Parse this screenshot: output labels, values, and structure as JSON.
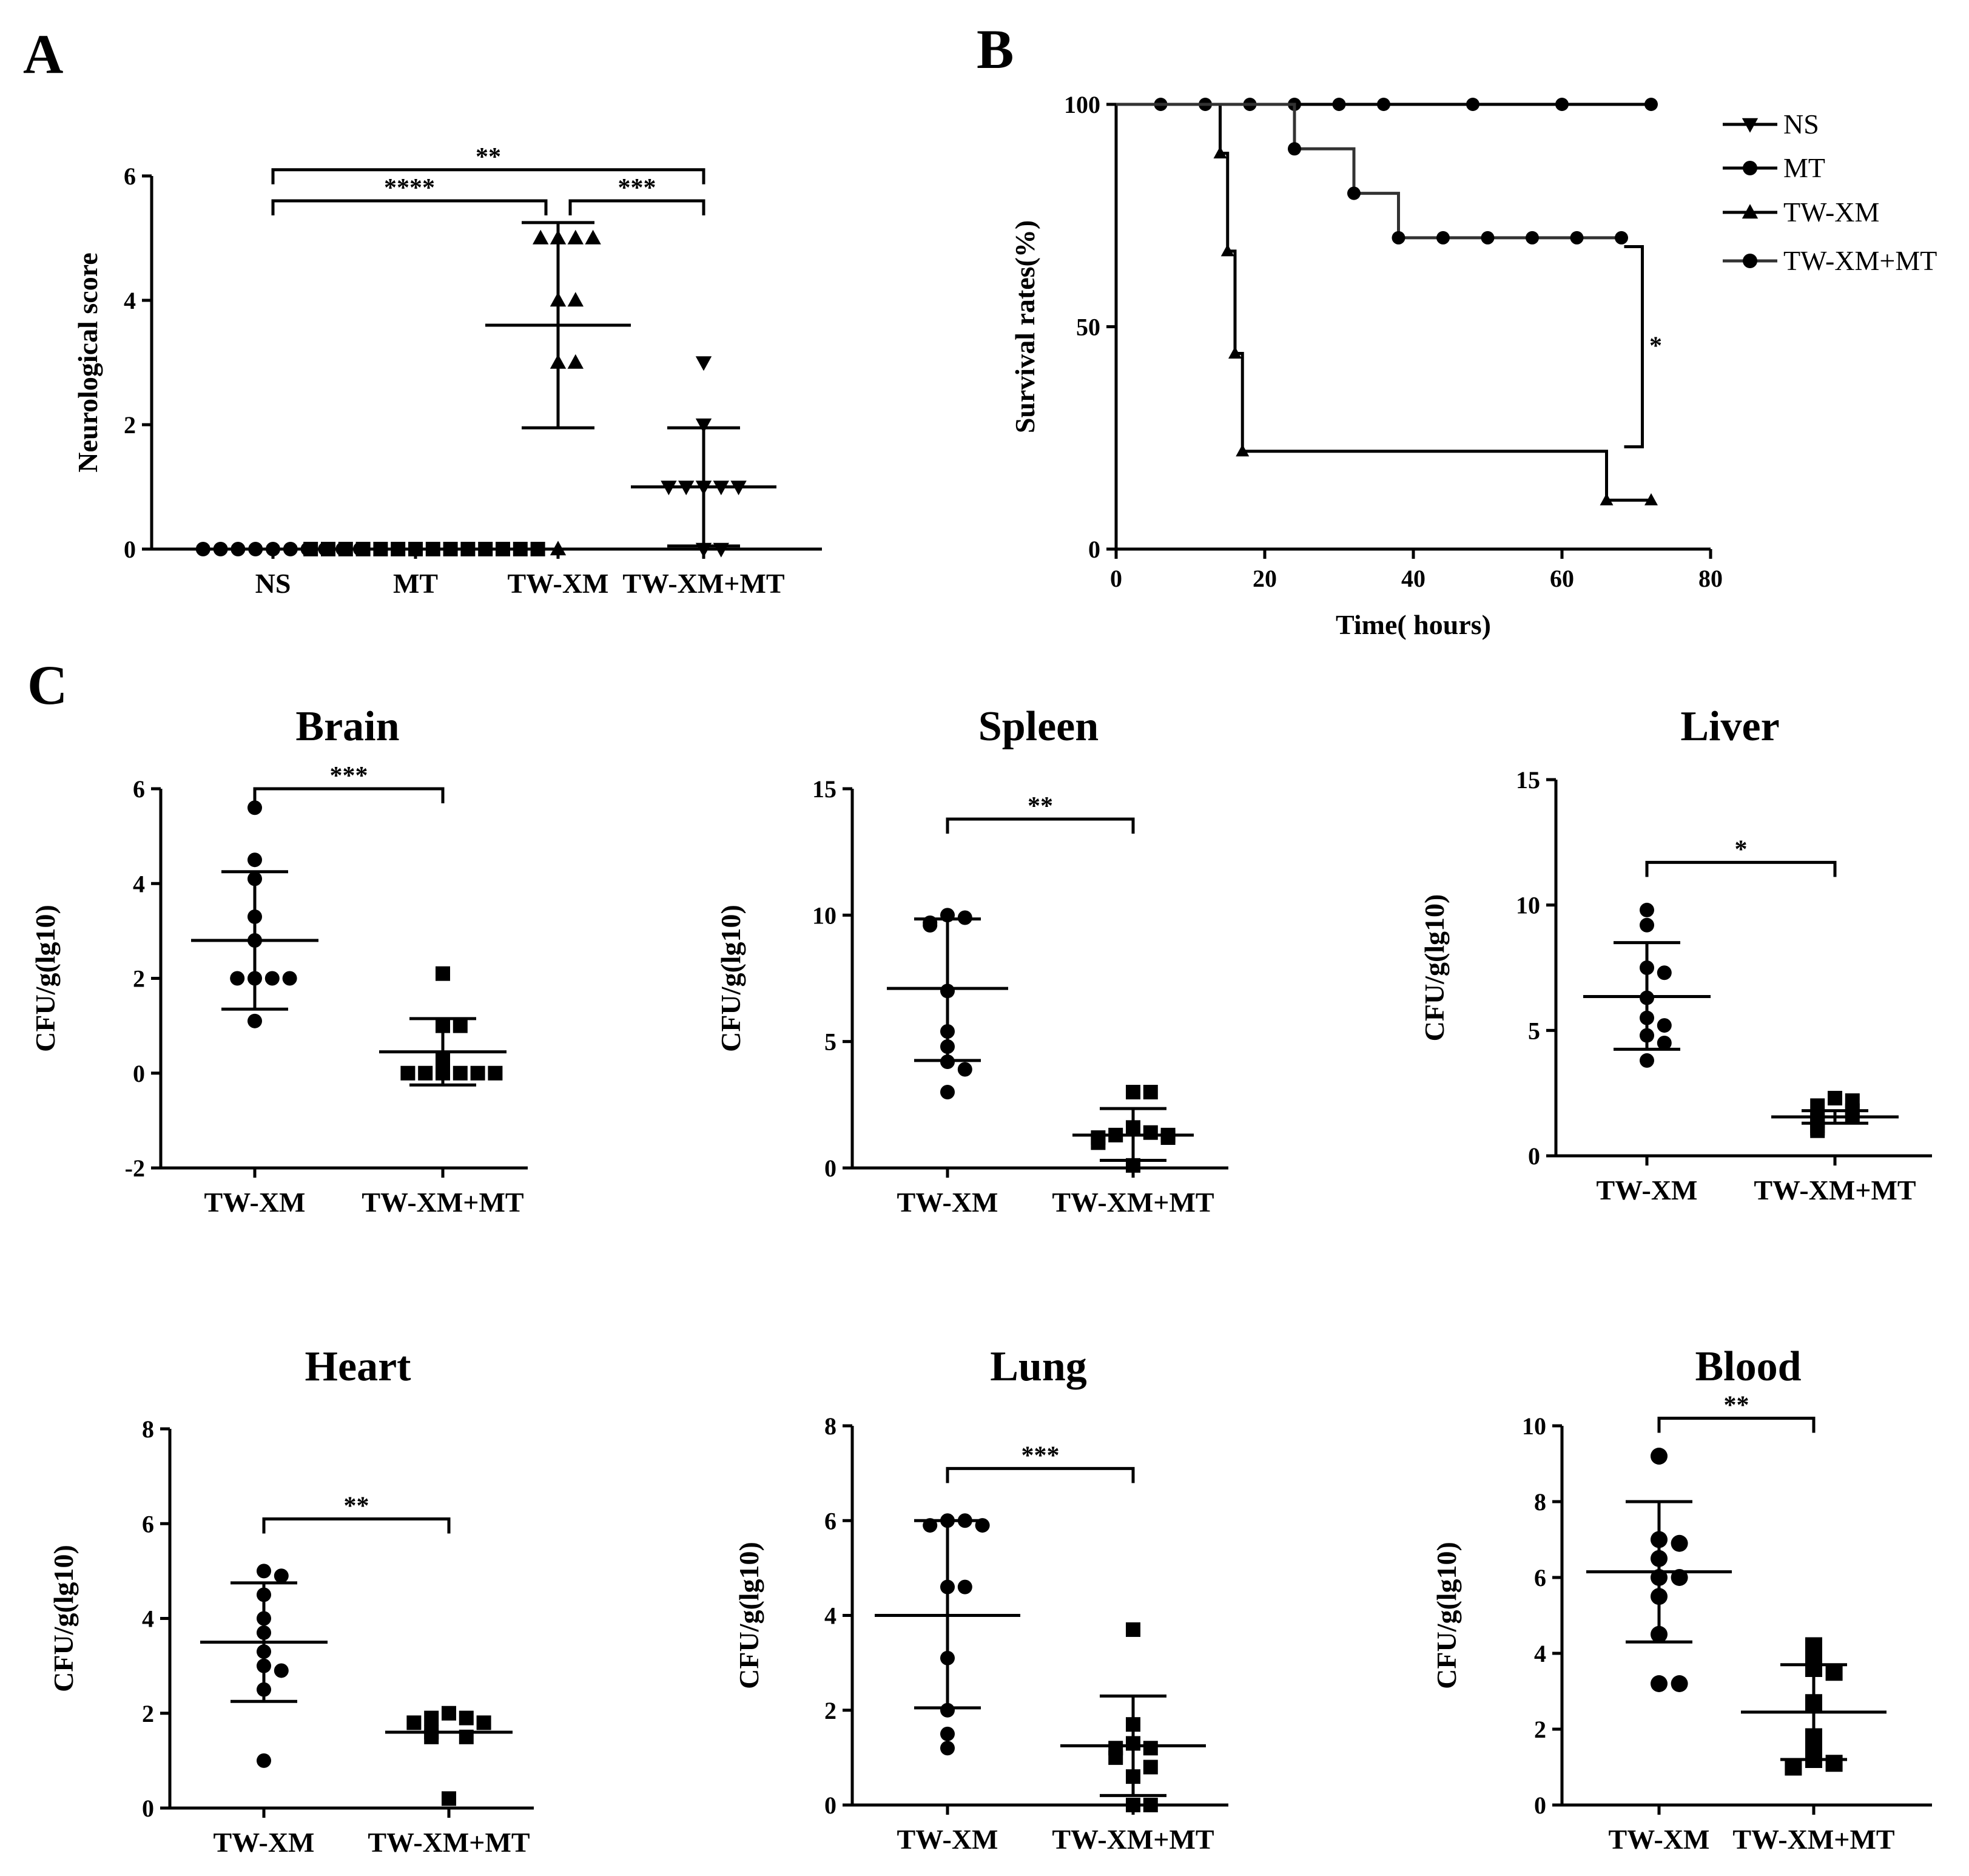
{
  "panel_letters": [
    "A",
    "B",
    "C"
  ],
  "chart_data": [
    {
      "id": "A",
      "type": "scatter",
      "title": "",
      "ylabel": "Neurological score",
      "xlabel": "",
      "categories": [
        "NS",
        "MT",
        "TW-XM",
        "TW-XM+MT"
      ],
      "ylim": [
        0,
        6
      ],
      "yticks": [
        0,
        2,
        4,
        6
      ],
      "groups": [
        {
          "name": "NS",
          "marker": "circle",
          "values": [
            0,
            0,
            0,
            0,
            0,
            0,
            0,
            0,
            0,
            0
          ],
          "mean": 0,
          "sd_low": 0,
          "sd_high": 0
        },
        {
          "name": "MT",
          "marker": "square",
          "values": [
            0,
            0,
            0,
            0,
            0,
            0,
            0,
            0,
            0,
            0,
            0,
            0,
            0,
            0
          ],
          "mean": 0,
          "sd_low": 0,
          "sd_high": 0
        },
        {
          "name": "TW-XM",
          "marker": "triangle-up",
          "values": [
            5,
            5,
            5,
            5,
            4,
            4,
            3,
            3,
            0
          ],
          "mean": 3.6,
          "sd_low": 1.95,
          "sd_high": 5.25
        },
        {
          "name": "TW-XM+MT",
          "marker": "triangle-down",
          "values": [
            3,
            2,
            1,
            1,
            1,
            1,
            1,
            0,
            0
          ],
          "mean": 1.0,
          "sd_low": 0.05,
          "sd_high": 1.95
        }
      ],
      "significance": [
        {
          "from": 0,
          "to": 3,
          "label": "**",
          "level": 6.1
        },
        {
          "from": 0,
          "to": 2,
          "label": "****",
          "level": 5.6
        },
        {
          "from": 2,
          "to": 3,
          "label": "***",
          "level": 5.6
        }
      ]
    },
    {
      "id": "B",
      "type": "line",
      "title": "",
      "xlabel": "Time( hours)",
      "ylabel": "Survival rates(%)",
      "xlim": [
        0,
        80
      ],
      "ylim": [
        0,
        100
      ],
      "xticks": [
        0,
        20,
        40,
        60,
        80
      ],
      "yticks": [
        0,
        50,
        100
      ],
      "legend_position": "right",
      "series": [
        {
          "name": "NS",
          "marker": "triangle-down",
          "steps": [
            [
              0,
              100
            ],
            [
              72,
              100
            ]
          ],
          "censored": [
            [
              6,
              100
            ],
            [
              12,
              100
            ],
            [
              18,
              100
            ],
            [
              24,
              100
            ],
            [
              30,
              100
            ],
            [
              36,
              100
            ],
            [
              48,
              100
            ],
            [
              60,
              100
            ],
            [
              72,
              100
            ]
          ]
        },
        {
          "name": "MT",
          "marker": "circle",
          "steps": [
            [
              0,
              100
            ],
            [
              72,
              100
            ]
          ],
          "censored": []
        },
        {
          "name": "TW-XM",
          "marker": "triangle-up",
          "steps": [
            [
              0,
              100
            ],
            [
              14,
              100
            ],
            [
              14,
              89
            ],
            [
              15,
              89
            ],
            [
              15,
              67
            ],
            [
              16,
              67
            ],
            [
              16,
              44
            ],
            [
              17,
              44
            ],
            [
              17,
              22
            ],
            [
              66,
              22
            ],
            [
              66,
              11
            ],
            [
              72,
              11
            ]
          ],
          "censored": [
            [
              14,
              89
            ],
            [
              15,
              67
            ],
            [
              16,
              44
            ],
            [
              17,
              22
            ],
            [
              66,
              11
            ],
            [
              72,
              11
            ]
          ]
        },
        {
          "name": "TW-XM+MT",
          "marker": "circle",
          "steps": [
            [
              0,
              100
            ],
            [
              24,
              100
            ],
            [
              24,
              90
            ],
            [
              32,
              90
            ],
            [
              32,
              80
            ],
            [
              38,
              80
            ],
            [
              38,
              70
            ],
            [
              68,
              70
            ]
          ],
          "censored": [
            [
              24,
              90
            ],
            [
              32,
              80
            ],
            [
              38,
              70
            ],
            [
              44,
              70
            ],
            [
              50,
              70
            ],
            [
              56,
              70
            ],
            [
              62,
              70
            ],
            [
              68,
              70
            ]
          ]
        }
      ],
      "significance": [
        {
          "x": 70,
          "y_top": 68,
          "y_bottom": 23,
          "label": "*"
        }
      ]
    },
    {
      "id": "C-Brain",
      "type": "scatter",
      "title": "Brain",
      "ylabel": "CFU/g(lg10)",
      "categories": [
        "TW-XM",
        "TW-XM+MT"
      ],
      "ylim": [
        -2,
        6
      ],
      "yticks": [
        -2,
        0,
        2,
        4,
        6
      ],
      "groups": [
        {
          "name": "TW-XM",
          "marker": "circle",
          "values": [
            5.6,
            4.5,
            4.1,
            3.3,
            2.8,
            2.0,
            2.0,
            2.0,
            2.0,
            1.1
          ],
          "mean": 2.8,
          "sd_low": 1.35,
          "sd_high": 4.25
        },
        {
          "name": "TW-XM+MT",
          "marker": "square",
          "values": [
            2.1,
            1.0,
            1.0,
            0.3,
            0.0,
            0.0,
            0.0,
            0.0,
            0.0,
            0.0
          ],
          "mean": 0.45,
          "sd_low": -0.25,
          "sd_high": 1.15
        }
      ],
      "significance": [
        {
          "from": 0,
          "to": 1,
          "label": "***",
          "level": 6.0
        }
      ]
    },
    {
      "id": "C-Spleen",
      "type": "scatter",
      "title": "Spleen",
      "ylabel": "CFU/g(lg10)",
      "categories": [
        "TW-XM",
        "TW-XM+MT"
      ],
      "ylim": [
        0,
        15
      ],
      "yticks": [
        0,
        5,
        10,
        15
      ],
      "groups": [
        {
          "name": "TW-XM",
          "marker": "circle",
          "values": [
            10.0,
            9.9,
            9.7,
            9.6,
            7.0,
            5.4,
            4.8,
            4.2,
            3.9,
            3.0
          ],
          "mean": 7.1,
          "sd_low": 4.25,
          "sd_high": 9.85
        },
        {
          "name": "TW-XM+MT",
          "marker": "square",
          "values": [
            3.0,
            3.0,
            1.6,
            1.4,
            1.3,
            1.3,
            1.2,
            1.2,
            1.0,
            0.1
          ],
          "mean": 1.3,
          "sd_low": 0.3,
          "sd_high": 2.35
        },
        {
          "name": "",
          "marker": "",
          "values": []
        }
      ],
      "significance": [
        {
          "from": 0,
          "to": 1,
          "label": "**",
          "level": 13.8
        }
      ]
    },
    {
      "id": "C-Liver",
      "type": "scatter",
      "title": "Liver",
      "ylabel": "CFU/g(lg10)",
      "categories": [
        "TW-XM",
        "TW-XM+MT"
      ],
      "ylim": [
        0,
        15
      ],
      "yticks": [
        0,
        5,
        10,
        15
      ],
      "groups": [
        {
          "name": "TW-XM",
          "marker": "circle",
          "values": [
            9.8,
            9.2,
            7.5,
            7.3,
            6.3,
            5.5,
            5.2,
            4.8,
            4.5,
            3.8
          ],
          "mean": 6.35,
          "sd_low": 4.25,
          "sd_high": 8.5
        },
        {
          "name": "TW-XM+MT",
          "marker": "square",
          "values": [
            2.3,
            2.2,
            2.0,
            1.8,
            1.6,
            1.5,
            1.4,
            1.2,
            1.1,
            1.0
          ],
          "mean": 1.55,
          "sd_low": 1.3,
          "sd_high": 1.8
        }
      ],
      "significance": [
        {
          "from": 0,
          "to": 1,
          "label": "*",
          "level": 11.7
        }
      ]
    },
    {
      "id": "C-Heart",
      "type": "scatter",
      "title": "Heart",
      "ylabel": "CFU/g(lg10)",
      "categories": [
        "TW-XM",
        "TW-XM+MT"
      ],
      "ylim": [
        0,
        8
      ],
      "yticks": [
        0,
        2,
        4,
        6,
        8
      ],
      "groups": [
        {
          "name": "TW-XM",
          "marker": "circle",
          "values": [
            5.0,
            4.9,
            4.5,
            4.0,
            3.7,
            3.3,
            3.0,
            2.9,
            2.5,
            1.0
          ],
          "mean": 3.5,
          "sd_low": 2.25,
          "sd_high": 4.75
        },
        {
          "name": "TW-XM+MT",
          "marker": "square",
          "values": [
            2.0,
            1.9,
            1.9,
            1.8,
            1.8,
            1.6,
            1.5,
            1.5,
            0.2
          ],
          "mean": 1.6,
          "sd_low": 1.6,
          "sd_high": 1.6
        }
      ],
      "significance": [
        {
          "from": 0,
          "to": 1,
          "label": "**",
          "level": 6.1
        }
      ]
    },
    {
      "id": "C-Lung",
      "type": "scatter",
      "title": "Lung",
      "ylabel": "CFU/g(lg10)",
      "categories": [
        "TW-XM",
        "TW-XM+MT"
      ],
      "ylim": [
        0,
        8
      ],
      "yticks": [
        0,
        2,
        4,
        6,
        8
      ],
      "groups": [
        {
          "name": "TW-XM",
          "marker": "circle",
          "values": [
            6.0,
            6.0,
            5.9,
            5.9,
            4.6,
            4.6,
            3.1,
            2.0,
            1.5,
            1.2
          ],
          "mean": 4.0,
          "sd_low": 2.05,
          "sd_high": 6.0
        },
        {
          "name": "TW-XM+MT",
          "marker": "square",
          "values": [
            3.7,
            1.7,
            1.3,
            1.2,
            1.2,
            1.0,
            0.8,
            0.6,
            0.0,
            0.0
          ],
          "mean": 1.25,
          "sd_low": 0.2,
          "sd_high": 2.3
        }
      ],
      "significance": [
        {
          "from": 0,
          "to": 1,
          "label": "***",
          "level": 7.1
        }
      ]
    },
    {
      "id": "C-Blood",
      "type": "scatter",
      "title": "Blood",
      "ylabel": "CFU/g(lg10)",
      "categories": [
        "TW-XM",
        "TW-XM+MT"
      ],
      "ylim": [
        0,
        10
      ],
      "yticks": [
        0,
        2,
        4,
        6,
        8,
        10
      ],
      "groups": [
        {
          "name": "TW-XM",
          "marker": "circle",
          "values": [
            9.2,
            7.0,
            6.9,
            6.5,
            6.0,
            6.0,
            5.5,
            4.5,
            3.2,
            3.2
          ],
          "mean": 6.15,
          "sd_low": 4.3,
          "sd_high": 8.0
        },
        {
          "name": "TW-XM+MT",
          "marker": "square",
          "values": [
            4.2,
            3.9,
            3.6,
            3.5,
            2.7,
            1.8,
            1.5,
            1.2,
            1.1,
            1.0
          ],
          "mean": 2.45,
          "sd_low": 1.2,
          "sd_high": 3.7
        }
      ],
      "significance": [
        {
          "from": 0,
          "to": 1,
          "label": "**",
          "level": 10.2
        }
      ]
    }
  ]
}
